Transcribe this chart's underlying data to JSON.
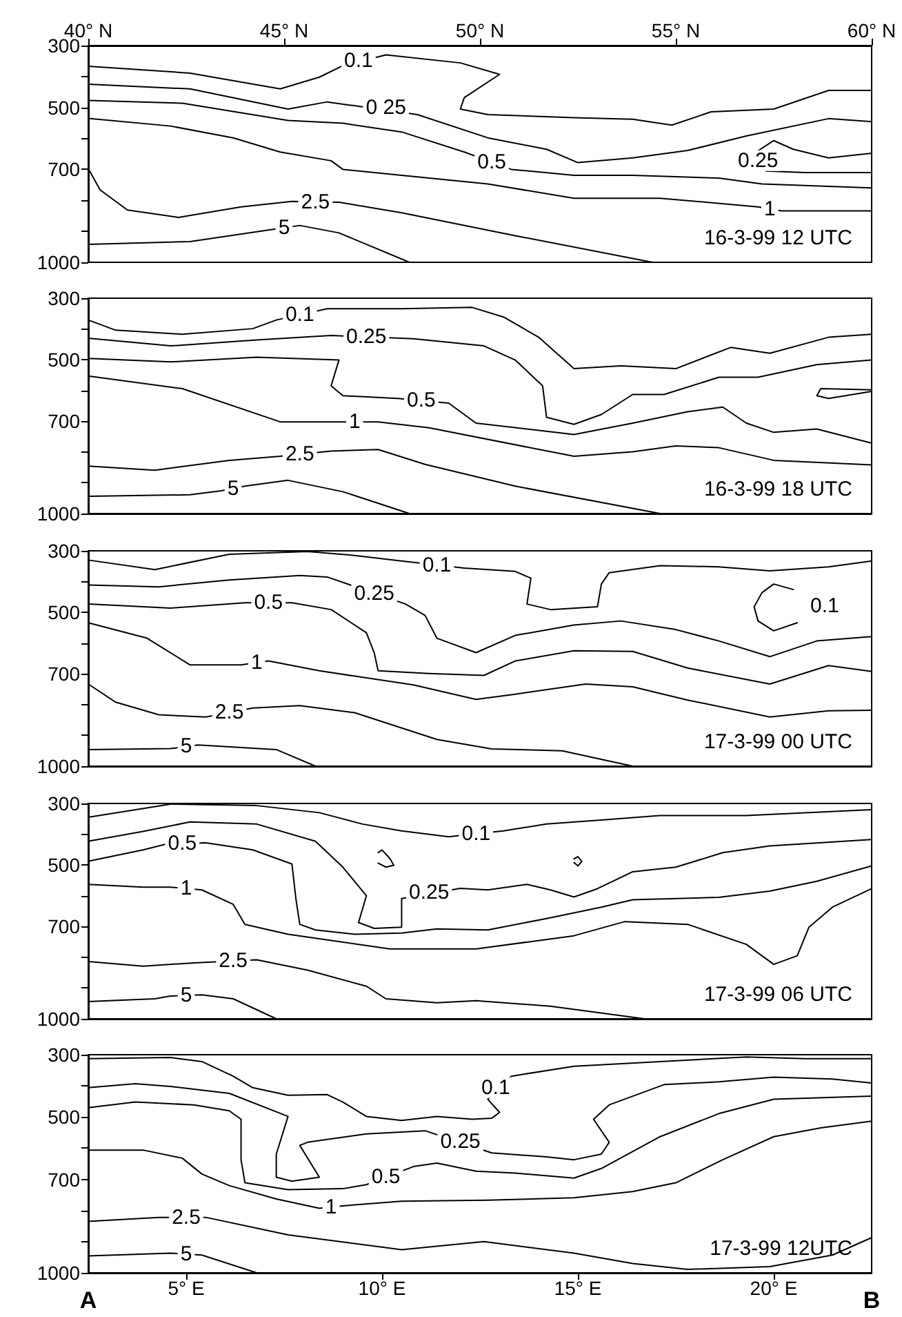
{
  "chart_data": [
    {
      "type": "line",
      "xlim": [
        40,
        60
      ],
      "xticks": [
        {
          "value": 40,
          "label": "40° N"
        },
        {
          "value": 45,
          "label": "45° N"
        },
        {
          "value": 50,
          "label": "50° N"
        },
        {
          "value": 55,
          "label": "55° N"
        },
        {
          "value": 60,
          "label": "60° N"
        }
      ],
      "ylim": [
        1000,
        300
      ],
      "yticks": [
        300,
        {
          "value": 400,
          "label": null
        },
        500,
        {
          "value": 600,
          "label": null
        },
        700,
        {
          "value": 800,
          "label": null
        },
        {
          "value": 900,
          "label": null
        },
        1000
      ],
      "marker": "none",
      "line_style": "solid",
      "annotations": [
        "16-3-99 12 UTC",
        {
          "text": "0.1",
          "x": 46.9,
          "y": 348
        },
        {
          "text": "0 25",
          "x": 47.6,
          "y": 500
        },
        {
          "text": "0.5",
          "x": 50.3,
          "y": 677
        },
        {
          "text": "0.25",
          "x": 57.1,
          "y": 672
        },
        {
          "text": "1",
          "x": 57.4,
          "y": 828
        },
        {
          "text": "2.5",
          "x": 45.8,
          "y": 805
        },
        {
          "text": "5",
          "x": 45,
          "y": 889
        }
      ],
      "series": [
        {
          "color": "#000000",
          "x": [
            40,
            42.6,
            44.9,
            45.9,
            46.5,
            47.6,
            49.5,
            50.5,
            49.6,
            49.5,
            50.2,
            52.4,
            53.9,
            54.9,
            55.9,
            57.5,
            58.9,
            60
          ],
          "values": [
            367,
            389,
            440,
            402,
            365,
            330,
            356,
            393,
            468,
            505,
            523,
            533,
            538,
            557,
            514,
            505,
            445,
            445
          ]
        },
        {
          "color": "#000000",
          "x": [
            40,
            42.6,
            45.1,
            46.1,
            48.4,
            50.2,
            51.7,
            52.5,
            53.9,
            55.3,
            56.8,
            58.9,
            60
          ],
          "values": [
            425,
            440,
            505,
            482,
            523,
            598,
            635,
            678,
            663,
            639,
            592,
            536,
            546
          ]
        },
        {
          "color": "#000000",
          "x": [
            40,
            42.4,
            45.1,
            46.5,
            48,
            49.6,
            50.8,
            52.4,
            53.9,
            56.1,
            57.2,
            60
          ],
          "values": [
            477,
            486,
            542,
            551,
            579,
            644,
            700,
            719,
            719,
            728,
            747,
            760
          ]
        },
        {
          "color": "#000000",
          "x": [
            60,
            58.9,
            58,
            57.5,
            57.1,
            57.3,
            58.3,
            60
          ],
          "values": [
            648,
            663,
            635,
            607,
            640,
            705,
            710,
            710
          ]
        },
        {
          "color": "#000000",
          "x": [
            40,
            42.1,
            43.7,
            44.9,
            46.2,
            46.5,
            48,
            50.2,
            52.4,
            54.6,
            57.1,
            57.7,
            60
          ],
          "values": [
            535,
            560,
            598,
            644,
            672,
            700,
            719,
            747,
            793,
            793,
            821,
            834,
            834
          ]
        },
        {
          "color": "#000000",
          "x": [
            40,
            40.3,
            41,
            42.3,
            43.9,
            45.2,
            46.4,
            48,
            50.9,
            54.4
          ],
          "values": [
            697,
            766,
            831,
            855,
            821,
            803,
            806,
            840,
            914,
            1000
          ]
        },
        {
          "color": "#000000",
          "x": [
            40,
            42.6,
            44.6,
            45.4,
            46.4,
            48.2
          ],
          "values": [
            942,
            933,
            896,
            881,
            905,
            1000
          ]
        }
      ]
    },
    {
      "type": "line",
      "xlim": [
        40,
        60
      ],
      "ylim": [
        1000,
        300
      ],
      "yticks": [
        300,
        {
          "value": 400,
          "label": null
        },
        500,
        {
          "value": 600,
          "label": null
        },
        700,
        {
          "value": 800,
          "label": null
        },
        {
          "value": 900,
          "label": null
        },
        1000
      ],
      "tick_labels": "y",
      "marker": "none",
      "line_style": "solid",
      "annotations": [
        "16-3-99 18 UTC",
        {
          "text": "0.1",
          "x": 45.4,
          "y": 353
        },
        {
          "text": "0.25",
          "x": 47.1,
          "y": 426
        },
        {
          "text": "0.5",
          "x": 48.5,
          "y": 633
        },
        {
          "text": "1",
          "x": 46.8,
          "y": 702
        },
        {
          "text": "2.5",
          "x": 45.4,
          "y": 807
        },
        {
          "text": "5",
          "x": 43.7,
          "y": 919
        }
      ],
      "series": [
        {
          "color": "#000000",
          "x": [
            40,
            40.7,
            42.4,
            44.2,
            44.8,
            46.1,
            48,
            49.8,
            50.6,
            51.5,
            52.4,
            53.6,
            55,
            56.4,
            57.4,
            58.9,
            60
          ],
          "values": [
            371,
            404,
            417,
            399,
            371,
            334,
            334,
            330,
            361,
            427,
            529,
            520,
            529,
            460,
            479,
            427,
            417
          ]
        },
        {
          "color": "#000000",
          "x": [
            40,
            42.1,
            44.3,
            46.2,
            48.3,
            50.1,
            50.9,
            51.6,
            51.7,
            52.4,
            53.1,
            53.9,
            54.7,
            56.1,
            57.1,
            58.6,
            60
          ],
          "values": [
            430,
            455,
            436,
            421,
            432,
            455,
            501,
            585,
            687,
            710,
            678,
            613,
            613,
            557,
            557,
            516,
            501
          ]
        },
        {
          "color": "#000000",
          "x": [
            40,
            42.1,
            44.3,
            46.4,
            46.2,
            46.5,
            47.9,
            49.2,
            49.9,
            52.4,
            53.9,
            55.3,
            56.2,
            56.8,
            57.5,
            58.6,
            60
          ],
          "values": [
            496,
            507,
            492,
            501,
            585,
            617,
            626,
            641,
            706,
            743,
            706,
            669,
            654,
            706,
            736,
            725,
            771
          ]
        },
        {
          "color": "#000000",
          "x": [
            40,
            42.4,
            44.9,
            46.4,
            47.4,
            48.7,
            52.4,
            53.9,
            55,
            56.1,
            57.5,
            60
          ],
          "values": [
            553,
            594,
            702,
            702,
            702,
            721,
            814,
            799,
            780,
            786,
            827,
            842
          ]
        },
        {
          "color": "#000000",
          "x": [
            60,
            58.7,
            58.6,
            58.9,
            60
          ],
          "values": [
            598,
            594,
            617,
            626,
            603
          ]
        },
        {
          "color": "#000000",
          "x": [
            40,
            41.7,
            43.6,
            44.9,
            46.2,
            47.4,
            48.6,
            50.9,
            54.6
          ],
          "values": [
            846,
            859,
            827,
            814,
            797,
            792,
            840,
            911,
            1000
          ]
        },
        {
          "color": "#000000",
          "x": [
            40,
            42.6,
            43.4,
            44,
            45.1,
            46.5,
            48.2
          ],
          "values": [
            944,
            939,
            926,
            911,
            892,
            929,
            1000
          ]
        }
      ]
    },
    {
      "type": "line",
      "xlim": [
        40,
        60
      ],
      "ylim": [
        1000,
        300
      ],
      "yticks": [
        300,
        {
          "value": 400,
          "label": null
        },
        500,
        {
          "value": 600,
          "label": null
        },
        700,
        {
          "value": 800,
          "label": null
        },
        {
          "value": 900,
          "label": null
        },
        1000
      ],
      "tick_labels": "y",
      "marker": "none",
      "line_style": "solid",
      "annotations": [
        "17-3-99 00 UTC",
        {
          "text": "0.1",
          "x": 48.9,
          "y": 346
        },
        {
          "text": "0.1",
          "x": 58.8,
          "y": 480
        },
        {
          "text": "0.25",
          "x": 47.3,
          "y": 438
        },
        {
          "text": "0.5",
          "x": 44.6,
          "y": 469
        },
        {
          "text": "1",
          "x": 44.3,
          "y": 664
        },
        {
          "text": "2.5",
          "x": 43.6,
          "y": 826
        },
        {
          "text": "5",
          "x": 42.5,
          "y": 936
        }
      ],
      "series": [
        {
          "color": "#000000",
          "x": [
            40,
            41.7,
            43.6,
            45.6,
            46.8,
            48,
            49.6,
            50.9,
            51.3,
            51.2,
            51.8,
            53,
            53.1,
            53.3,
            54.6,
            56.1,
            57.4,
            58.9,
            60
          ],
          "values": [
            330,
            361,
            311,
            302,
            315,
            333,
            356,
            367,
            389,
            473,
            491,
            482,
            408,
            371,
            348,
            352,
            365,
            352,
            333
          ]
        },
        {
          "color": "#000000",
          "x": [
            40,
            41.8,
            43.6,
            45.4,
            46.1,
            48.1,
            48.6,
            48.9,
            49.9,
            50.9,
            52.4,
            53.6,
            55,
            56.1,
            57.4,
            58.6,
            60
          ],
          "values": [
            411,
            417,
            395,
            380,
            385,
            473,
            510,
            584,
            631,
            575,
            541,
            528,
            556,
            593,
            644,
            593,
            579
          ]
        },
        {
          "color": "#000000",
          "x": [
            40,
            42.1,
            44,
            45.2,
            46.2,
            47.1,
            47.3,
            47.4,
            48.7,
            50.1,
            50.9,
            52.4,
            53.9,
            55.3,
            57.4,
            58.9,
            60
          ],
          "values": [
            473,
            486,
            469,
            469,
            491,
            566,
            631,
            690,
            699,
            705,
            658,
            625,
            627,
            681,
            733,
            673,
            692
          ]
        },
        {
          "color": "#000000",
          "x": [
            40,
            41.5,
            42.6,
            43.9,
            44.6,
            45.9,
            48.3,
            49.9,
            50.9,
            52.7,
            53.9,
            55.3,
            57.4,
            58.9,
            60
          ],
          "values": [
            534,
            584,
            671,
            671,
            658,
            690,
            736,
            783,
            766,
            733,
            742,
            785,
            840,
            820,
            818
          ]
        },
        {
          "color": "#000000",
          "x": [
            40,
            40.7,
            41.8,
            43,
            44.2,
            45.4,
            46.8,
            48.9,
            50.3,
            52.1,
            53.9
          ],
          "values": [
            733,
            792,
            833,
            840,
            811,
            803,
            826,
            913,
            944,
            950,
            1000
          ]
        },
        {
          "color": "#000000",
          "x": [
            40,
            42.1,
            42.8,
            44.8,
            45.8
          ],
          "values": [
            946,
            943,
            931,
            946,
            1000
          ]
        },
        {
          "color": "#000000",
          "x": [
            58.1,
            57.5,
            57.1,
            57,
            57.2,
            57.5,
            58
          ],
          "values": [
            534,
            560,
            528,
            482,
            436,
            408,
            426
          ]
        }
      ]
    },
    {
      "type": "line",
      "xlim": [
        40,
        60
      ],
      "ylim": [
        1000,
        300
      ],
      "yticks": [
        300,
        {
          "value": 400,
          "label": null
        },
        500,
        {
          "value": 600,
          "label": null
        },
        700,
        {
          "value": 800,
          "label": null
        },
        {
          "value": 900,
          "label": null
        },
        1000
      ],
      "tick_labels": "y",
      "marker": "none",
      "line_style": "solid",
      "annotations": [
        "17-3-99 06 UTC",
        {
          "text": "0.1",
          "x": 49.9,
          "y": 399
        },
        {
          "text": "0.25",
          "x": 48.7,
          "y": 590
        },
        {
          "text": "0.5",
          "x": 42.4,
          "y": 430
        },
        {
          "text": "1",
          "x": 42.5,
          "y": 576
        },
        {
          "text": "2.5",
          "x": 43.7,
          "y": 812
        },
        {
          "text": "5",
          "x": 42.5,
          "y": 924
        }
      ],
      "series": [
        {
          "color": "#000000",
          "x": [
            40,
            42.1,
            44.3,
            45.9,
            47,
            48,
            49.2,
            50.6,
            51.7,
            53.1,
            54.6,
            56.8,
            60
          ],
          "values": [
            345,
            302,
            307,
            330,
            367,
            389,
            408,
            389,
            367,
            354,
            339,
            339,
            320
          ]
        },
        {
          "color": "#000000",
          "x": [
            40,
            41.4,
            42.6,
            44.3,
            45.8,
            46.5,
            47.1,
            46.9,
            47.3,
            48,
            48,
            49.5,
            50.2,
            51.2,
            51.8,
            52.4,
            53,
            53.9,
            55,
            56.2,
            57.4,
            60
          ],
          "values": [
            423,
            391,
            360,
            367,
            423,
            507,
            600,
            687,
            706,
            702,
            609,
            576,
            581,
            563,
            581,
            604,
            577,
            522,
            507,
            460,
            438,
            417
          ]
        },
        {
          "color": "#000000",
          "x": [
            40,
            41.4,
            42,
            43,
            44.2,
            45.2,
            45.3,
            45.4,
            45.8,
            46.8,
            48,
            48.9,
            50.2,
            51.7,
            53.1,
            53.9,
            56.1,
            57.4,
            58.6,
            60
          ],
          "values": [
            488,
            451,
            432,
            428,
            451,
            497,
            609,
            693,
            711,
            725,
            721,
            708,
            711,
            674,
            637,
            613,
            605,
            585,
            553,
            503
          ]
        },
        {
          "color": "#000000",
          "x": [
            40,
            41.4,
            42.1,
            42.9,
            43.7,
            44,
            45.1,
            47.7,
            49.9,
            52.4,
            53.7,
            55.3,
            56.8,
            57.5,
            58.1,
            58.4,
            59,
            60
          ],
          "values": [
            563,
            572,
            572,
            581,
            628,
            693,
            725,
            773,
            773,
            730,
            684,
            693,
            758,
            823,
            795,
            702,
            637,
            577
          ]
        },
        {
          "color": "#000000",
          "x": [
            40,
            41.4,
            42.7,
            44.3,
            45.6,
            47.1,
            47.6,
            48.9,
            49.9,
            51.8,
            54.2
          ],
          "values": [
            814,
            829,
            818,
            808,
            842,
            894,
            935,
            948,
            941,
            959,
            1000
          ]
        },
        {
          "color": "#000000",
          "x": [
            40,
            41.7,
            42.1,
            42.9,
            43.7,
            44.8
          ],
          "values": [
            944,
            935,
            926,
            922,
            935,
            1000
          ]
        },
        {
          "color": "#000000",
          "x": [
            47.4,
            47.5,
            47.7,
            47.8,
            47.6,
            47.4
          ],
          "values": [
            460,
            451,
            479,
            501,
            507,
            494
          ]
        },
        {
          "color": "#000000",
          "x": [
            52.4,
            52.5,
            52.6,
            52.5,
            52.4
          ],
          "values": [
            480,
            473,
            488,
            503,
            492
          ]
        }
      ]
    },
    {
      "type": "line",
      "xlim": [
        2.5,
        22.5
      ],
      "xticks": [
        {
          "value": 5,
          "label": "5° E"
        },
        {
          "value": 10,
          "label": "10° E"
        },
        {
          "value": 15,
          "label": "15° E"
        },
        {
          "value": 20,
          "label": "20° E"
        }
      ],
      "ylim": [
        1000,
        300
      ],
      "yticks": [
        300,
        {
          "value": 400,
          "label": null
        },
        500,
        {
          "value": 600,
          "label": null
        },
        700,
        {
          "value": 800,
          "label": null
        },
        {
          "value": 900,
          "label": null
        },
        1000
      ],
      "marker": "none",
      "line_style": "solid",
      "annotations": [
        "17-3-99 12UTC",
        "A",
        "B",
        {
          "text": "0.1",
          "x": 12.9,
          "y": 406
        },
        {
          "text": "0.25",
          "x": 12,
          "y": 580
        },
        {
          "text": "0.5",
          "x": 10.1,
          "y": 693
        },
        {
          "text": "1",
          "x": 8.7,
          "y": 789
        },
        {
          "text": "2.5",
          "x": 5,
          "y": 822
        },
        {
          "text": "5",
          "x": 5,
          "y": 940
        }
      ],
      "series": [
        {
          "color": "#000000",
          "x": [
            2.5,
            4.6,
            5.4,
            6.2,
            6.7,
            7.6,
            8.6,
            9,
            9.6,
            10.5,
            11.4,
            12.3,
            12.8,
            13,
            12.7,
            13.3,
            14.9,
            17.1,
            19.3,
            20.8,
            22.5
          ],
          "values": [
            313,
            309,
            322,
            369,
            406,
            430,
            428,
            452,
            498,
            511,
            498,
            507,
            504,
            485,
            443,
            369,
            337,
            322,
            307,
            313,
            313
          ]
        },
        {
          "color": "#000000",
          "x": [
            2.5,
            3.7,
            4.6,
            6.1,
            7.6,
            7.3,
            7.3,
            7.7,
            8.4,
            7.9,
            8.1,
            9.6,
            11.1,
            12.8,
            14.2,
            14.9,
            15.6,
            15.8,
            15.4,
            15.8,
            17.2,
            18.6,
            20,
            21.5,
            22.5
          ],
          "values": [
            406,
            393,
            402,
            424,
            498,
            619,
            693,
            706,
            693,
            591,
            581,
            554,
            544,
            615,
            628,
            637,
            619,
            581,
            507,
            461,
            396,
            387,
            372,
            378,
            391
          ]
        },
        {
          "color": "#000000",
          "x": [
            2.5,
            3.7,
            5.2,
            6.1,
            6.4,
            6.4,
            6.5,
            7.6,
            9,
            9.6,
            10.8,
            11.4,
            12.4,
            13.4,
            14.9,
            15.6,
            17.1,
            18.6,
            20,
            22.5
          ],
          "values": [
            470,
            452,
            461,
            480,
            507,
            637,
            711,
            733,
            730,
            717,
            659,
            648,
            674,
            680,
            696,
            665,
            563,
            489,
            443,
            433
          ]
        },
        {
          "color": "#000000",
          "x": [
            2.5,
            3.9,
            4.9,
            5.4,
            6.1,
            7.3,
            8.4,
            9,
            10.5,
            12.7,
            14.9,
            16.4,
            17.5,
            18.7,
            20,
            21.2,
            22.5
          ],
          "values": [
            606,
            606,
            632,
            683,
            720,
            763,
            793,
            785,
            770,
            767,
            759,
            739,
            711,
            637,
            563,
            535,
            513
          ]
        },
        {
          "color": "#000000",
          "x": [
            2.5,
            4.3,
            5.5,
            7.6,
            10.5,
            12.6,
            14.9,
            16.4,
            17.8,
            19.9,
            21.5,
            22.5
          ],
          "values": [
            835,
            822,
            822,
            878,
            926,
            900,
            937,
            970,
            989,
            980,
            943,
            887
          ]
        },
        {
          "color": "#000000",
          "x": [
            2.5,
            4.6,
            5.4,
            6.8
          ],
          "values": [
            946,
            937,
            943,
            1000
          ]
        }
      ]
    }
  ]
}
